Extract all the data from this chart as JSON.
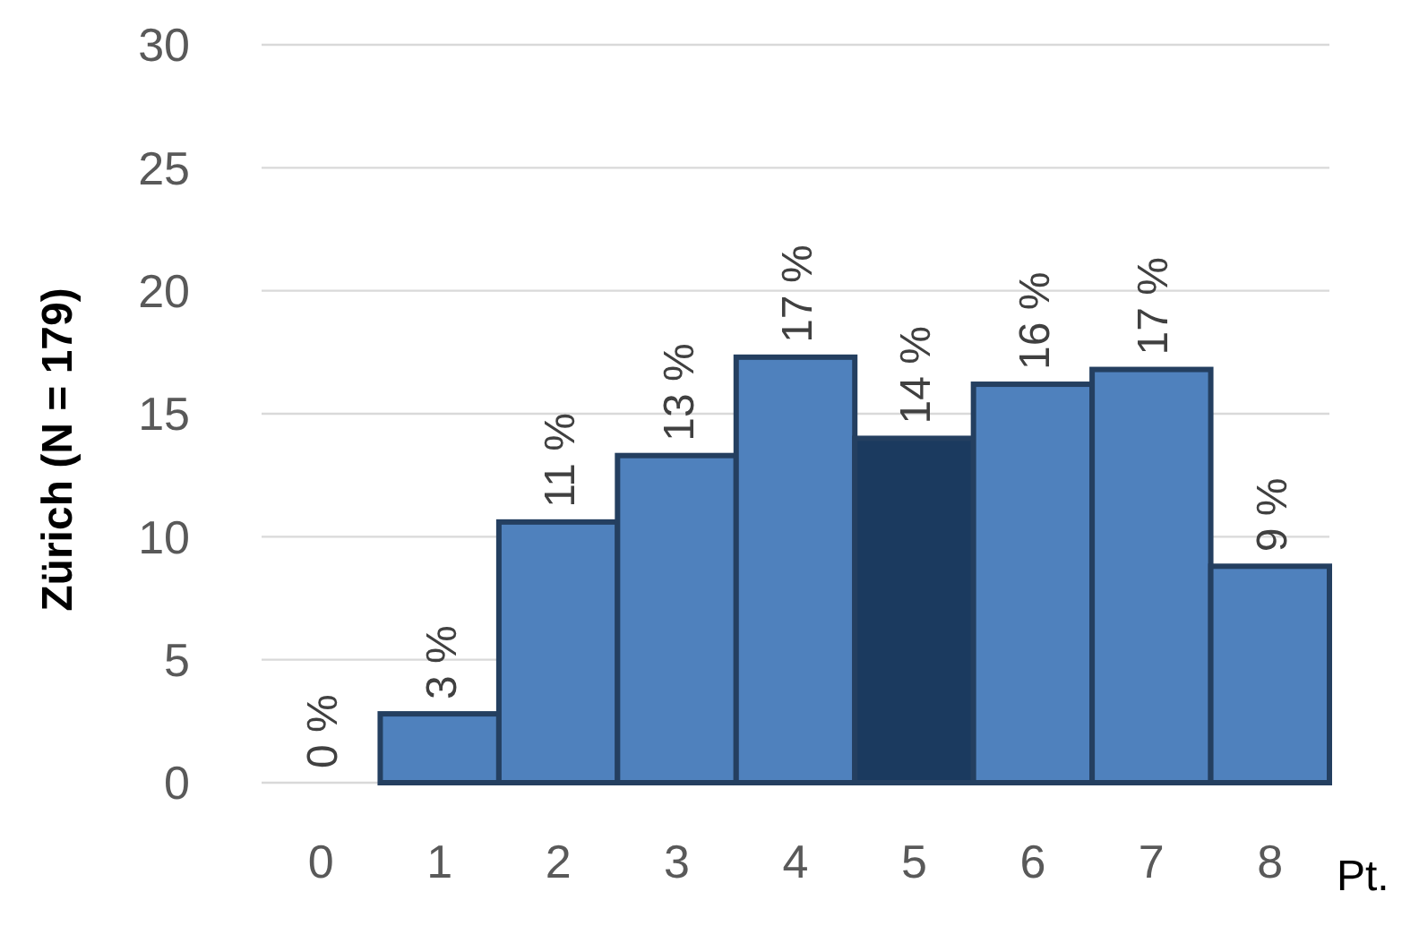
{
  "chart_data": {
    "type": "bar",
    "xlabel": "Pt.",
    "ylabel": "Zürich (N = 179)",
    "categories": [
      "0",
      "1",
      "2",
      "3",
      "4",
      "5",
      "6",
      "7",
      "8"
    ],
    "values": [
      0,
      2.8,
      10.6,
      13.3,
      17.3,
      14.0,
      16.2,
      16.8,
      8.8
    ],
    "colors": [
      "#4f81bd",
      "#4f81bd",
      "#4f81bd",
      "#4f81bd",
      "#4f81bd",
      "#1b3a5f",
      "#4f81bd",
      "#4f81bd",
      "#4f81bd"
    ],
    "value_labels": [
      "0 %",
      "3 %",
      "11 %",
      "13 %",
      "17 %",
      "14 %",
      "16 %",
      "17 %",
      "9 %"
    ],
    "ylim": [
      0,
      30
    ],
    "yticks": [
      0,
      5,
      10,
      15,
      20,
      25,
      30
    ],
    "grid": "y"
  }
}
